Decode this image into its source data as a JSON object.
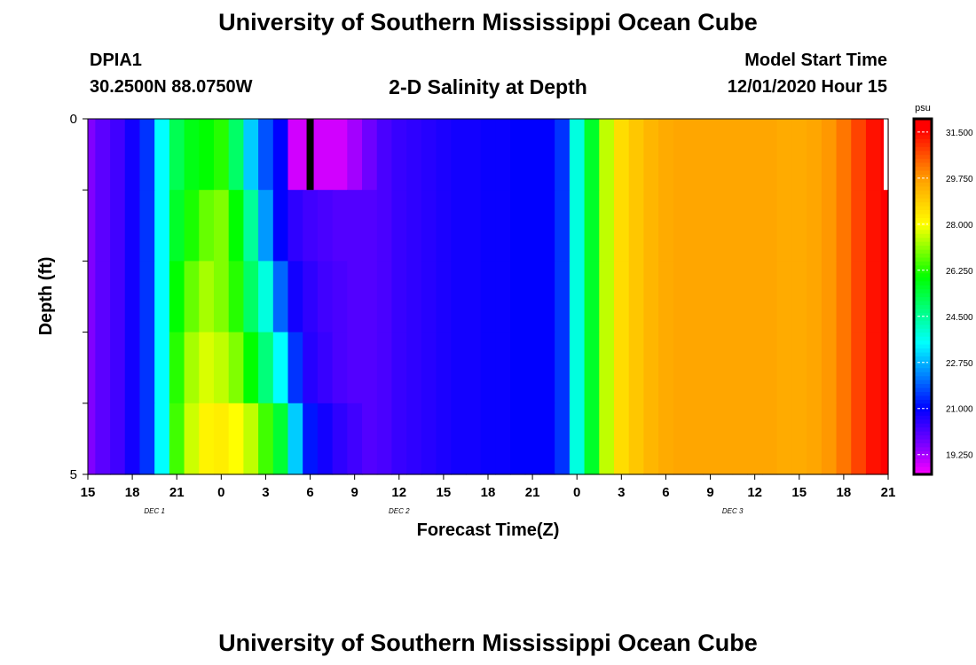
{
  "header": {
    "title": "University of Southern Mississippi Ocean Cube",
    "station_id": "DPIA1",
    "station_coords": "30.2500N 88.0750W",
    "plot_title": "2-D Salinity at Depth",
    "model_label": "Model Start Time",
    "model_time": "12/01/2020 Hour 15"
  },
  "footer": {
    "title": "University of Southern Mississippi Ocean Cube"
  },
  "chart_data": {
    "type": "heatmap",
    "title": "2-D Salinity at Depth",
    "xlabel": "Forecast Time(Z)",
    "ylabel": "Depth (ft)",
    "x_tick_labels": [
      "15",
      "18",
      "21",
      "0",
      "3",
      "6",
      "9",
      "12",
      "15",
      "18",
      "21",
      "0",
      "3",
      "6",
      "9",
      "12",
      "15",
      "18",
      "21"
    ],
    "x_range_hours": [
      0,
      54
    ],
    "x_step_hours": 1,
    "day_labels": [
      {
        "label": "DEC 1",
        "hour": 4.5
      },
      {
        "label": "DEC 2",
        "hour": 21
      },
      {
        "label": "DEC 3",
        "hour": 43.5
      }
    ],
    "y_tick_labels": [
      "0",
      "5"
    ],
    "y_range": [
      0,
      5
    ],
    "depth_layers": [
      "0-1",
      "1-2",
      "2-3",
      "3-4",
      "4-5"
    ],
    "colorbar": {
      "unit": "psu",
      "range": [
        18.5,
        32.0
      ],
      "tick_values": [
        19.25,
        21.0,
        22.75,
        24.5,
        26.25,
        28.0,
        29.75,
        31.5
      ],
      "tick_labels": [
        "19.250",
        "21.000",
        "22.750",
        "24.500",
        "26.250",
        "28.000",
        "29.750",
        "31.500"
      ]
    },
    "salinity": [
      [
        19.6,
        20.0,
        20.3,
        20.8,
        21.5,
        23.5,
        25.2,
        25.8,
        26.0,
        26.3,
        25.0,
        23.0,
        21.8,
        21.0,
        18.9,
        18.9,
        18.9,
        18.9,
        19.3,
        19.8,
        20.2,
        20.4,
        20.5,
        20.6,
        20.7,
        20.8,
        20.8,
        20.9,
        20.9,
        21.0,
        21.0,
        21.0,
        21.5,
        23.8,
        25.6,
        27.5,
        28.6,
        29.0,
        29.3,
        29.5,
        29.6,
        29.6,
        29.6,
        29.6,
        29.6,
        29.6,
        29.6,
        29.5,
        29.5,
        29.6,
        29.8,
        30.2,
        30.8,
        31.4,
        31.8
      ],
      [
        19.6,
        20.0,
        20.3,
        20.8,
        21.5,
        23.5,
        25.6,
        26.2,
        26.8,
        27.0,
        26.0,
        24.5,
        22.5,
        21.0,
        20.5,
        20.3,
        20.2,
        20.1,
        20.1,
        20.1,
        20.2,
        20.4,
        20.5,
        20.6,
        20.7,
        20.8,
        20.8,
        20.9,
        20.9,
        21.0,
        21.0,
        21.0,
        21.5,
        23.8,
        25.6,
        27.5,
        28.6,
        29.0,
        29.3,
        29.5,
        29.6,
        29.6,
        29.6,
        29.6,
        29.6,
        29.6,
        29.6,
        29.5,
        29.5,
        29.6,
        29.8,
        30.2,
        30.8,
        31.4,
        31.8
      ],
      [
        19.6,
        20.0,
        20.3,
        20.8,
        21.5,
        23.5,
        26.0,
        26.8,
        27.3,
        27.0,
        26.3,
        25.0,
        23.8,
        22.0,
        20.8,
        20.5,
        20.3,
        20.2,
        20.1,
        20.1,
        20.2,
        20.4,
        20.5,
        20.6,
        20.7,
        20.8,
        20.8,
        20.9,
        20.9,
        21.0,
        21.0,
        21.0,
        21.5,
        23.8,
        25.6,
        27.5,
        28.6,
        29.0,
        29.3,
        29.5,
        29.6,
        29.6,
        29.6,
        29.6,
        29.6,
        29.6,
        29.6,
        29.5,
        29.5,
        29.6,
        29.8,
        30.2,
        30.8,
        31.4,
        31.8
      ],
      [
        19.6,
        20.0,
        20.3,
        20.8,
        21.5,
        23.5,
        26.3,
        27.3,
        27.7,
        27.5,
        27.0,
        26.0,
        24.8,
        23.5,
        21.5,
        20.6,
        20.4,
        20.2,
        20.1,
        20.1,
        20.2,
        20.4,
        20.5,
        20.6,
        20.7,
        20.8,
        20.8,
        20.9,
        20.9,
        21.0,
        21.0,
        21.0,
        21.5,
        23.8,
        25.6,
        27.5,
        28.6,
        29.0,
        29.3,
        29.5,
        29.6,
        29.6,
        29.6,
        29.6,
        29.6,
        29.6,
        29.6,
        29.5,
        29.5,
        29.6,
        29.8,
        30.2,
        30.8,
        31.4,
        31.8
      ],
      [
        19.6,
        20.0,
        20.3,
        20.8,
        21.5,
        23.5,
        26.5,
        27.6,
        28.2,
        28.3,
        28.0,
        27.5,
        26.5,
        25.5,
        23.0,
        21.2,
        20.8,
        20.5,
        20.3,
        20.1,
        20.2,
        20.4,
        20.5,
        20.6,
        20.7,
        20.8,
        20.8,
        20.9,
        20.9,
        21.0,
        21.0,
        21.0,
        21.5,
        23.8,
        25.6,
        27.5,
        28.6,
        29.0,
        29.3,
        29.5,
        29.6,
        29.6,
        29.6,
        29.6,
        29.6,
        29.6,
        29.6,
        29.5,
        29.5,
        29.6,
        29.8,
        30.2,
        30.8,
        31.4,
        31.8
      ]
    ],
    "colors": {
      "magenta": "#ff00ff",
      "purple": "#8000ff",
      "blue": "#0000ff",
      "cyan": "#00ffff",
      "green": "#00ff00",
      "yellow": "#ffff00",
      "orange": "#ffa000",
      "red": "#ff0000",
      "marker": "#000000"
    },
    "missing_value_marker": {
      "hour": 15,
      "layer": 0
    }
  }
}
